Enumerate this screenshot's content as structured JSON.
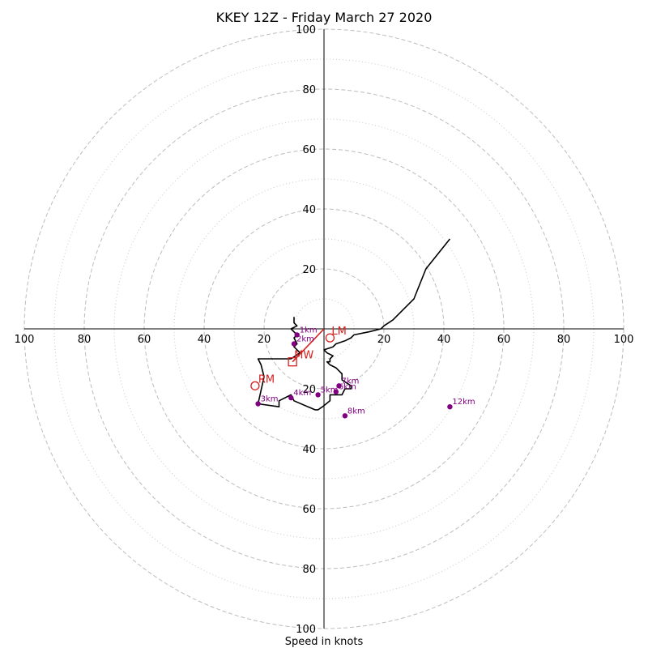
{
  "title": "KKEY 12Z - Friday March 27 2020",
  "chart_data": {
    "type": "line",
    "title": "KKEY 12Z - Friday March 27 2020",
    "xlabel": "Speed in knots",
    "ylabel": "",
    "xlim": [
      -100,
      100
    ],
    "ylim": [
      -100,
      100
    ],
    "ring_major": [
      20,
      40,
      60,
      80,
      100
    ],
    "ring_minor": [
      10,
      30,
      50,
      70,
      90
    ],
    "tick_labels": [
      "100",
      "80",
      "60",
      "40",
      "20",
      "20",
      "40",
      "60",
      "80",
      "100",
      "100",
      "80",
      "60",
      "40",
      "20",
      "20",
      "40",
      "60",
      "80",
      "100"
    ],
    "grid": true,
    "series": [
      {
        "color": "#000000",
        "u": [
          -10,
          -10,
          -9,
          -11,
          -9,
          -10,
          -9,
          -10,
          -8,
          -11,
          -11,
          -22,
          -21,
          -20,
          -22,
          -15,
          -15,
          -11,
          -10,
          -3,
          -2,
          -0.5,
          2,
          2,
          6,
          7,
          8,
          9,
          9,
          6,
          6,
          5,
          4,
          2,
          1,
          2,
          2,
          3,
          1,
          0,
          3,
          4,
          7,
          9,
          10,
          15,
          19,
          20,
          23,
          30,
          34,
          42
        ],
        "v": [
          4,
          2,
          1,
          0,
          -2,
          -3,
          -5,
          -6,
          -8,
          -10,
          -10,
          -10,
          -12,
          -16,
          -25,
          -26,
          -24,
          -22,
          -24,
          -27,
          -27,
          -26,
          -24,
          -22,
          -22,
          -20,
          -20,
          -20,
          -19,
          -17,
          -15,
          -14,
          -13,
          -12,
          -11,
          -11,
          -10,
          -9,
          -8,
          -7,
          -6,
          -5,
          -4,
          -3,
          -2,
          -1,
          0,
          1,
          3,
          10,
          20,
          30
        ],
        "height_markers": [
          {
            "label": "1km",
            "u": -9,
            "v": -2
          },
          {
            "label": "2km",
            "u": -10,
            "v": -5
          },
          {
            "label": "3km",
            "u": -22,
            "v": -25
          },
          {
            "label": "4km",
            "u": -11,
            "v": -23
          },
          {
            "label": "5km",
            "u": -2,
            "v": -22
          },
          {
            "label": "6km",
            "u": 4,
            "v": -21
          },
          {
            "label": "7km",
            "u": 5,
            "v": -19
          },
          {
            "label": "8km",
            "u": 7,
            "v": -29
          },
          {
            "label": "12km",
            "u": 42,
            "v": -26
          }
        ]
      }
    ],
    "storm_motion": {
      "color": "#d62020",
      "RM": {
        "label": "RM",
        "u": -23,
        "v": -19
      },
      "LM": {
        "label": "LM",
        "u": 2,
        "v": -3
      },
      "MW": {
        "label": "MW",
        "u": -10.5,
        "v": -11
      }
    }
  }
}
